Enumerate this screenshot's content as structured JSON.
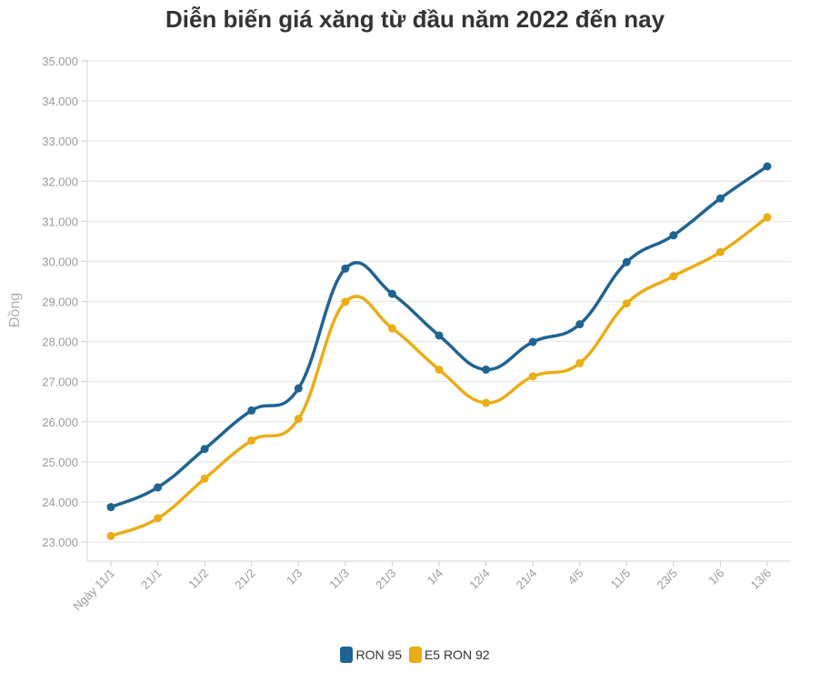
{
  "chart_data": {
    "type": "line",
    "title": "Diễn biến giá xăng từ đầu năm 2022 đến nay",
    "xlabel": "",
    "ylabel": "Đồng",
    "categories": [
      "Ngày 11/1",
      "21/1",
      "11/2",
      "21/2",
      "1/3",
      "11/3",
      "21/3",
      "1/4",
      "12/4",
      "21/4",
      "4/5",
      "11/5",
      "23/5",
      "1/6",
      "13/6"
    ],
    "ylim": [
      22500,
      35000
    ],
    "yticks": [
      {
        "value": 23000,
        "label": "23.000"
      },
      {
        "value": 24000,
        "label": "24.000"
      },
      {
        "value": 25000,
        "label": "25.000"
      },
      {
        "value": 26000,
        "label": "26.000"
      },
      {
        "value": 27000,
        "label": "27.000"
      },
      {
        "value": 28000,
        "label": "28.000"
      },
      {
        "value": 29000,
        "label": "29.000"
      },
      {
        "value": 30000,
        "label": "30.000"
      },
      {
        "value": 31000,
        "label": "31.000"
      },
      {
        "value": 32000,
        "label": "32.000"
      },
      {
        "value": 33000,
        "label": "33.000"
      },
      {
        "value": 34000,
        "label": "34.000"
      },
      {
        "value": 35000,
        "label": "35.000"
      }
    ],
    "grid": true,
    "legend_position": "bottom-center",
    "series": [
      {
        "name": "RON 95",
        "color": "#1f6391",
        "values": [
          23870,
          24360,
          25320,
          26280,
          26830,
          29820,
          29190,
          28150,
          27300,
          27990,
          28430,
          29980,
          30650,
          31570,
          32370
        ]
      },
      {
        "name": "E5 RON 92",
        "color": "#eaad16",
        "values": [
          23150,
          23590,
          24580,
          25530,
          26070,
          28990,
          28330,
          27300,
          26470,
          27130,
          27460,
          28950,
          29630,
          30230,
          31100
        ]
      }
    ]
  }
}
